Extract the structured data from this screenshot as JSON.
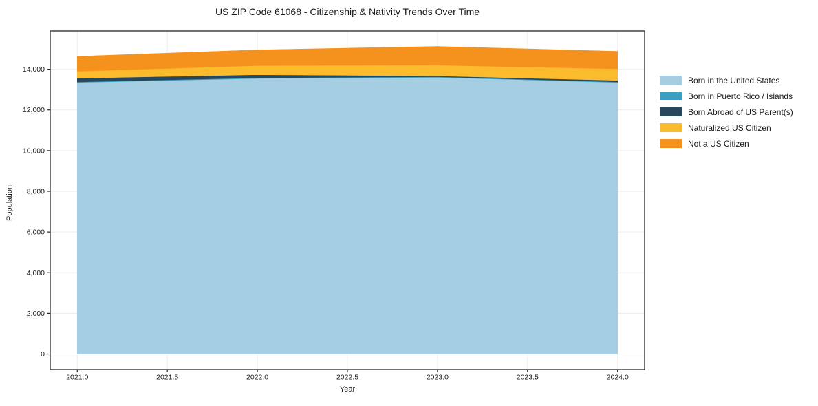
{
  "chart_data": {
    "type": "area",
    "stacked": true,
    "title": "US ZIP Code 61068 - Citizenship & Nativity Trends Over Time",
    "xlabel": "Year",
    "ylabel": "Population",
    "x": [
      2021,
      2022,
      2023,
      2024
    ],
    "series": [
      {
        "name": "Born in the United States",
        "color": "#a6cee3",
        "values": [
          13350,
          13550,
          13600,
          13350
        ]
      },
      {
        "name": "Born in Puerto Rico / Islands",
        "color": "#3a9fc1",
        "values": [
          30,
          30,
          30,
          30
        ]
      },
      {
        "name": "Born Abroad of US Parent(s)",
        "color": "#27485c",
        "values": [
          180,
          150,
          40,
          70
        ]
      },
      {
        "name": "Naturalized US Citizen",
        "color": "#fcba2d",
        "values": [
          340,
          450,
          530,
          570
        ]
      },
      {
        "name": "Not a US Citizen",
        "color": "#f5921e",
        "values": [
          730,
          770,
          920,
          860
        ]
      }
    ],
    "totals": [
      14630,
      14950,
      15120,
      14880
    ],
    "xlim": [
      2020.85,
      2024.15
    ],
    "ylim": [
      -760,
      15880
    ],
    "xticks": [
      2021.0,
      2021.5,
      2022.0,
      2022.5,
      2023.0,
      2023.5,
      2024.0
    ],
    "xtick_labels": [
      "2021.0",
      "2021.5",
      "2022.0",
      "2022.5",
      "2023.0",
      "2023.5",
      "2024.0"
    ],
    "yticks": [
      0,
      2000,
      4000,
      6000,
      8000,
      10000,
      12000,
      14000
    ],
    "ytick_labels": [
      "0",
      "2,000",
      "4,000",
      "6,000",
      "8,000",
      "10,000",
      "12,000",
      "14,000"
    ],
    "grid": true,
    "legend_position": "right-outside"
  },
  "colors": {
    "background": "#ffffff",
    "grid": "#ececec",
    "spine": "#262626",
    "text": "#1a1a1a"
  }
}
